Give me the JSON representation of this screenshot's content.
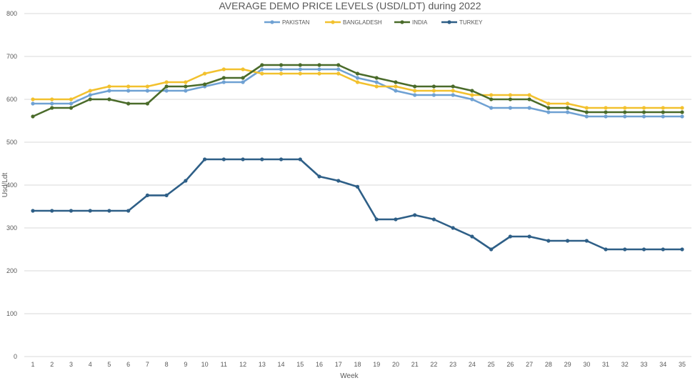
{
  "chart_data": {
    "type": "line",
    "title": "AVERAGE DEMO PRICE LEVELS (USD/LDT) during 2022",
    "xlabel": "Week",
    "ylabel": "Usd/Ldt",
    "ylim": [
      0,
      800
    ],
    "yticks": [
      0,
      100,
      200,
      300,
      400,
      500,
      600,
      700,
      800
    ],
    "grid": true,
    "legend_position": "top",
    "categories": [
      "1",
      "2",
      "3",
      "4",
      "5",
      "6",
      "7",
      "8",
      "9",
      "10",
      "11",
      "12",
      "13",
      "14",
      "15",
      "16",
      "17",
      "18",
      "19",
      "20",
      "21",
      "22",
      "23",
      "24",
      "25",
      "26",
      "27",
      "28",
      "29",
      "30",
      "31",
      "32",
      "33",
      "34",
      "35"
    ],
    "series": [
      {
        "name": "PAKISTAN",
        "color": "#6fa1d3",
        "values": [
          590,
          590,
          590,
          610,
          620,
          620,
          620,
          620,
          620,
          630,
          640,
          640,
          670,
          670,
          670,
          670,
          670,
          650,
          640,
          620,
          610,
          610,
          610,
          600,
          580,
          580,
          580,
          570,
          570,
          560,
          560,
          560,
          560,
          560,
          560
        ]
      },
      {
        "name": "BANGLADESH",
        "color": "#f2c12e",
        "values": [
          600,
          600,
          600,
          620,
          630,
          630,
          630,
          640,
          640,
          660,
          670,
          670,
          660,
          660,
          660,
          660,
          660,
          640,
          630,
          630,
          620,
          620,
          620,
          610,
          610,
          610,
          610,
          590,
          590,
          580,
          580,
          580,
          580,
          580,
          580
        ]
      },
      {
        "name": "INDIA",
        "color": "#4a6b2a",
        "values": [
          560,
          580,
          580,
          600,
          600,
          590,
          590,
          630,
          630,
          635,
          650,
          650,
          680,
          680,
          680,
          680,
          680,
          660,
          650,
          640,
          630,
          630,
          630,
          620,
          600,
          600,
          600,
          580,
          580,
          570,
          570,
          570,
          570,
          570,
          570
        ]
      },
      {
        "name": "TURKEY",
        "color": "#2e5f87",
        "values": [
          340,
          340,
          340,
          340,
          340,
          340,
          376,
          376,
          410,
          460,
          460,
          460,
          460,
          460,
          460,
          420,
          410,
          396,
          320,
          320,
          330,
          320,
          300,
          280,
          250,
          280,
          280,
          270,
          270,
          270,
          250,
          250,
          250,
          250,
          250
        ]
      }
    ]
  }
}
